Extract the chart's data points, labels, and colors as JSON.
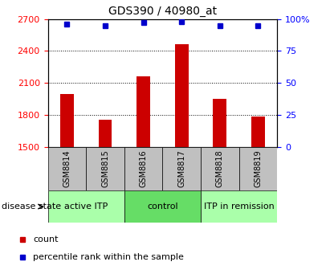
{
  "title": "GDS390 / 40980_at",
  "samples": [
    "GSM8814",
    "GSM8815",
    "GSM8816",
    "GSM8817",
    "GSM8818",
    "GSM8819"
  ],
  "counts": [
    2000,
    1760,
    2160,
    2460,
    1950,
    1790
  ],
  "percentiles": [
    96,
    95,
    97,
    98,
    95,
    95
  ],
  "ylim_left": [
    1500,
    2700
  ],
  "ylim_right": [
    0,
    100
  ],
  "yticks_left": [
    1500,
    1800,
    2100,
    2400,
    2700
  ],
  "yticks_right": [
    0,
    25,
    50,
    75,
    100
  ],
  "ytick_labels_right": [
    "0",
    "25",
    "50",
    "75",
    "100%"
  ],
  "bar_color": "#cc0000",
  "dot_color": "#0000cc",
  "background_xtick": "#c0c0c0",
  "groups": [
    {
      "label": "active ITP",
      "indices": [
        0,
        1
      ],
      "color": "#aaffaa"
    },
    {
      "label": "control",
      "indices": [
        2,
        3
      ],
      "color": "#66dd66"
    },
    {
      "label": "ITP in remission",
      "indices": [
        4,
        5
      ],
      "color": "#aaffaa"
    }
  ],
  "legend_items": [
    {
      "label": "count",
      "color": "#cc0000"
    },
    {
      "label": "percentile rank within the sample",
      "color": "#0000cc"
    }
  ],
  "disease_state_label": "disease state",
  "title_fontsize": 10,
  "tick_fontsize": 8,
  "sample_fontsize": 7,
  "group_fontsize": 8
}
